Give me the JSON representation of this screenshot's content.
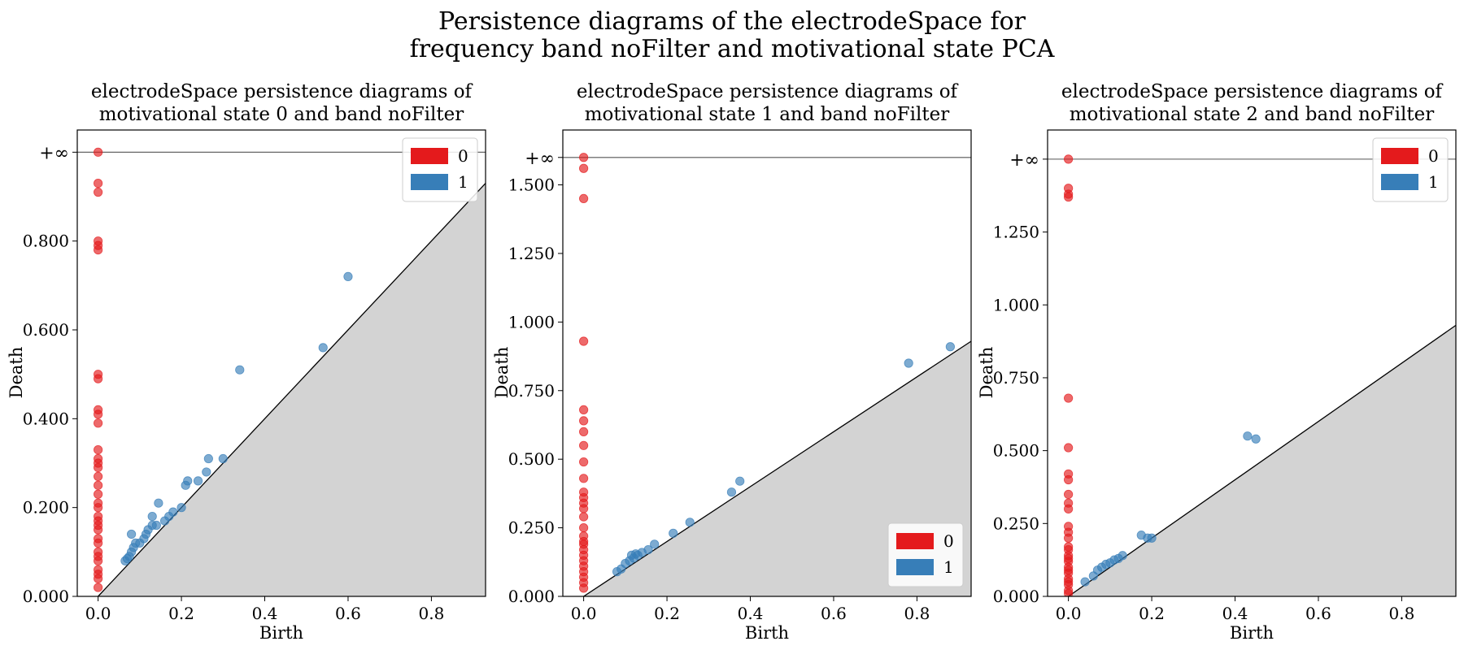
{
  "suptitle": {
    "line1": "Persistence diagrams of the electrodeSpace for",
    "line2": "frequency band noFilter and motivational state PCA"
  },
  "colors": {
    "dim0": "#e41a1c",
    "dim1": "#377eb8",
    "shade": "#d3d3d3"
  },
  "chart_data": [
    {
      "type": "scatter",
      "title_line1": "electrodeSpace persistence diagrams of",
      "title_line2": "motivational state 0 and band noFilter",
      "xlabel": "Birth",
      "ylabel": "Death",
      "xlim": [
        -0.05,
        0.93
      ],
      "ylim": [
        0.0,
        1.05
      ],
      "inf_level": 1.0,
      "inf_label": "+∞",
      "xticks": [
        0.0,
        0.2,
        0.4,
        0.6,
        0.8
      ],
      "xtick_labels": [
        "0.0",
        "0.2",
        "0.4",
        "0.6",
        "0.8"
      ],
      "yticks": [
        0.0,
        0.2,
        0.4,
        0.6,
        0.8
      ],
      "ytick_labels": [
        "0.000",
        "0.200",
        "0.400",
        "0.600",
        "0.800"
      ],
      "legend_position": "top-right",
      "series": [
        {
          "name": "0",
          "points": [
            [
              0,
              0.02
            ],
            [
              0,
              0.04
            ],
            [
              0,
              0.05
            ],
            [
              0,
              0.06
            ],
            [
              0,
              0.08
            ],
            [
              0,
              0.09
            ],
            [
              0,
              0.1
            ],
            [
              0,
              0.12
            ],
            [
              0,
              0.13
            ],
            [
              0,
              0.15
            ],
            [
              0,
              0.16
            ],
            [
              0,
              0.17
            ],
            [
              0,
              0.18
            ],
            [
              0,
              0.2
            ],
            [
              0,
              0.21
            ],
            [
              0,
              0.23
            ],
            [
              0,
              0.25
            ],
            [
              0,
              0.27
            ],
            [
              0,
              0.29
            ],
            [
              0,
              0.3
            ],
            [
              0,
              0.31
            ],
            [
              0,
              0.33
            ],
            [
              0,
              0.39
            ],
            [
              0,
              0.41
            ],
            [
              0,
              0.42
            ],
            [
              0,
              0.49
            ],
            [
              0,
              0.5
            ],
            [
              0,
              0.78
            ],
            [
              0,
              0.79
            ],
            [
              0,
              0.8
            ],
            [
              0,
              0.91
            ],
            [
              0,
              0.93
            ],
            [
              0,
              1.0
            ]
          ]
        },
        {
          "name": "1",
          "points": [
            [
              0.065,
              0.08
            ],
            [
              0.07,
              0.085
            ],
            [
              0.075,
              0.09
            ],
            [
              0.08,
              0.1
            ],
            [
              0.085,
              0.11
            ],
            [
              0.09,
              0.12
            ],
            [
              0.1,
              0.12
            ],
            [
              0.08,
              0.14
            ],
            [
              0.11,
              0.13
            ],
            [
              0.115,
              0.14
            ],
            [
              0.12,
              0.15
            ],
            [
              0.13,
              0.16
            ],
            [
              0.14,
              0.16
            ],
            [
              0.13,
              0.18
            ],
            [
              0.145,
              0.21
            ],
            [
              0.16,
              0.17
            ],
            [
              0.17,
              0.18
            ],
            [
              0.18,
              0.19
            ],
            [
              0.2,
              0.2
            ],
            [
              0.21,
              0.25
            ],
            [
              0.215,
              0.26
            ],
            [
              0.24,
              0.26
            ],
            [
              0.26,
              0.28
            ],
            [
              0.265,
              0.31
            ],
            [
              0.3,
              0.31
            ],
            [
              0.34,
              0.51
            ],
            [
              0.54,
              0.56
            ],
            [
              0.6,
              0.72
            ]
          ]
        }
      ]
    },
    {
      "type": "scatter",
      "title_line1": "electrodeSpace persistence diagrams of",
      "title_line2": "motivational state 1 and band noFilter",
      "xlabel": "Birth",
      "ylabel": "Death",
      "xlim": [
        -0.05,
        0.93
      ],
      "ylim": [
        0.0,
        1.7
      ],
      "inf_level": 1.6,
      "inf_label": "+∞",
      "xticks": [
        0.0,
        0.2,
        0.4,
        0.6,
        0.8
      ],
      "xtick_labels": [
        "0.0",
        "0.2",
        "0.4",
        "0.6",
        "0.8"
      ],
      "yticks": [
        0.0,
        0.25,
        0.5,
        0.75,
        1.0,
        1.25,
        1.5
      ],
      "ytick_labels": [
        "0.000",
        "0.250",
        "0.500",
        "0.750",
        "1.000",
        "1.250",
        "1.500"
      ],
      "legend_position": "bottom-right",
      "series": [
        {
          "name": "0",
          "points": [
            [
              0,
              0.03
            ],
            [
              0,
              0.05
            ],
            [
              0,
              0.07
            ],
            [
              0,
              0.09
            ],
            [
              0,
              0.11
            ],
            [
              0,
              0.13
            ],
            [
              0,
              0.15
            ],
            [
              0,
              0.17
            ],
            [
              0,
              0.19
            ],
            [
              0,
              0.2
            ],
            [
              0,
              0.22
            ],
            [
              0,
              0.25
            ],
            [
              0,
              0.29
            ],
            [
              0,
              0.32
            ],
            [
              0,
              0.34
            ],
            [
              0,
              0.36
            ],
            [
              0,
              0.38
            ],
            [
              0,
              0.43
            ],
            [
              0,
              0.49
            ],
            [
              0,
              0.55
            ],
            [
              0,
              0.6
            ],
            [
              0,
              0.64
            ],
            [
              0,
              0.68
            ],
            [
              0,
              0.93
            ],
            [
              0,
              1.45
            ],
            [
              0,
              1.56
            ],
            [
              0,
              1.6
            ]
          ]
        },
        {
          "name": "1",
          "points": [
            [
              0.08,
              0.09
            ],
            [
              0.09,
              0.1
            ],
            [
              0.1,
              0.12
            ],
            [
              0.11,
              0.13
            ],
            [
              0.115,
              0.15
            ],
            [
              0.12,
              0.14
            ],
            [
              0.125,
              0.155
            ],
            [
              0.13,
              0.15
            ],
            [
              0.14,
              0.16
            ],
            [
              0.155,
              0.17
            ],
            [
              0.17,
              0.19
            ],
            [
              0.215,
              0.23
            ],
            [
              0.255,
              0.27
            ],
            [
              0.355,
              0.38
            ],
            [
              0.375,
              0.42
            ],
            [
              0.78,
              0.85
            ],
            [
              0.88,
              0.91
            ]
          ]
        }
      ]
    },
    {
      "type": "scatter",
      "title_line1": "electrodeSpace persistence diagrams of",
      "title_line2": "motivational state 2 and band noFilter",
      "xlabel": "Birth",
      "ylabel": "Death",
      "xlim": [
        -0.05,
        0.93
      ],
      "ylim": [
        0.0,
        1.6
      ],
      "inf_level": 1.5,
      "inf_label": "+∞",
      "xticks": [
        0.0,
        0.2,
        0.4,
        0.6,
        0.8
      ],
      "xtick_labels": [
        "0.0",
        "0.2",
        "0.4",
        "0.6",
        "0.8"
      ],
      "yticks": [
        0.0,
        0.25,
        0.5,
        0.75,
        1.0,
        1.25
      ],
      "ytick_labels": [
        "0.000",
        "0.250",
        "0.500",
        "0.750",
        "1.000",
        "1.250"
      ],
      "legend_position": "top-right",
      "series": [
        {
          "name": "0",
          "points": [
            [
              0,
              0.01
            ],
            [
              0,
              0.02
            ],
            [
              0,
              0.04
            ],
            [
              0,
              0.05
            ],
            [
              0,
              0.06
            ],
            [
              0,
              0.08
            ],
            [
              0,
              0.09
            ],
            [
              0,
              0.1
            ],
            [
              0,
              0.12
            ],
            [
              0,
              0.13
            ],
            [
              0,
              0.14
            ],
            [
              0,
              0.16
            ],
            [
              0,
              0.17
            ],
            [
              0,
              0.2
            ],
            [
              0,
              0.22
            ],
            [
              0,
              0.24
            ],
            [
              0,
              0.3
            ],
            [
              0,
              0.32
            ],
            [
              0,
              0.35
            ],
            [
              0,
              0.4
            ],
            [
              0,
              0.42
            ],
            [
              0,
              0.51
            ],
            [
              0,
              0.68
            ],
            [
              0,
              1.37
            ],
            [
              0,
              1.38
            ],
            [
              0,
              1.4
            ],
            [
              0,
              1.5
            ]
          ]
        },
        {
          "name": "1",
          "points": [
            [
              0.04,
              0.05
            ],
            [
              0.06,
              0.07
            ],
            [
              0.07,
              0.09
            ],
            [
              0.08,
              0.1
            ],
            [
              0.09,
              0.11
            ],
            [
              0.1,
              0.115
            ],
            [
              0.11,
              0.125
            ],
            [
              0.12,
              0.13
            ],
            [
              0.13,
              0.14
            ],
            [
              0.175,
              0.21
            ],
            [
              0.19,
              0.2
            ],
            [
              0.2,
              0.2
            ],
            [
              0.43,
              0.55
            ],
            [
              0.45,
              0.54
            ]
          ]
        }
      ]
    }
  ]
}
